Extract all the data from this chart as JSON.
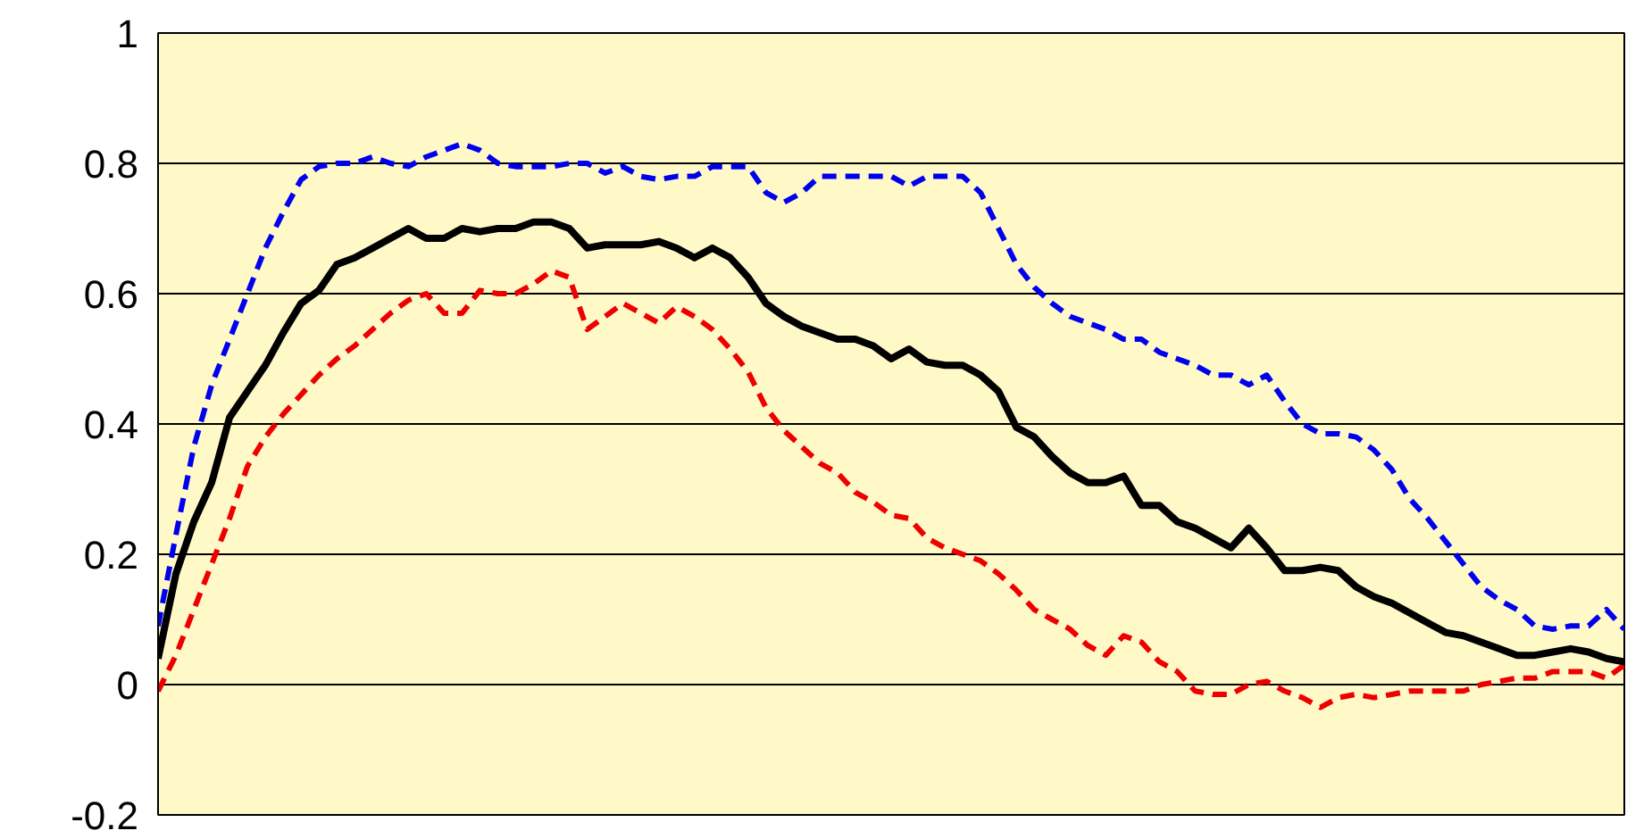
{
  "chart_data": {
    "type": "line",
    "categories": [
      null,
      null,
      null,
      null,
      null,
      null,
      null,
      null,
      null,
      null,
      null,
      null,
      null,
      null,
      null,
      null,
      null,
      null,
      null,
      null,
      null,
      null,
      null,
      null,
      null,
      null,
      null,
      null,
      null,
      null,
      null,
      null,
      null,
      null,
      null,
      null,
      null,
      null,
      null,
      null,
      null,
      null,
      null,
      null,
      null,
      null,
      null,
      null,
      null,
      null,
      null,
      null,
      null,
      null,
      null,
      null,
      null,
      null,
      null,
      null,
      null,
      null,
      null,
      null,
      null,
      null,
      null,
      null,
      null,
      null,
      null,
      null,
      null,
      null,
      null,
      null,
      null,
      null,
      null,
      null,
      null,
      null,
      null
    ],
    "series": [
      {
        "color": "#0000ee",
        "line_style": "dashed",
        "values": [
          0.09,
          0.23,
          0.365,
          0.46,
          0.53,
          0.6,
          0.67,
          0.725,
          0.775,
          0.795,
          0.8,
          0.8,
          0.81,
          0.8,
          0.795,
          0.81,
          0.82,
          0.83,
          0.82,
          0.8,
          0.795,
          0.795,
          0.795,
          0.8,
          0.8,
          0.785,
          0.795,
          0.78,
          0.775,
          0.78,
          0.78,
          0.795,
          0.795,
          0.795,
          0.755,
          0.74,
          0.755,
          0.78,
          0.78,
          0.78,
          0.78,
          0.78,
          0.765,
          0.78,
          0.78,
          0.78,
          0.755,
          0.7,
          0.645,
          0.61,
          0.585,
          0.565,
          0.555,
          0.545,
          0.53,
          0.53,
          0.51,
          0.5,
          0.49,
          0.475,
          0.475,
          0.46,
          0.475,
          0.435,
          0.4,
          0.385,
          0.385,
          0.38,
          0.36,
          0.33,
          0.285,
          0.255,
          0.22,
          0.185,
          0.15,
          0.13,
          0.115,
          0.09,
          0.085,
          0.09,
          0.09,
          0.115,
          0.085
        ]
      },
      {
        "color": "#ee0000",
        "line_style": "dashed",
        "values": [
          -0.01,
          0.045,
          0.115,
          0.185,
          0.255,
          0.335,
          0.38,
          0.415,
          0.445,
          0.475,
          0.5,
          0.52,
          0.545,
          0.57,
          0.59,
          0.6,
          0.57,
          0.57,
          0.605,
          0.6,
          0.6,
          0.615,
          0.635,
          0.625,
          0.545,
          0.565,
          0.585,
          0.57,
          0.555,
          0.58,
          0.565,
          0.545,
          0.515,
          0.48,
          0.425,
          0.39,
          0.365,
          0.34,
          0.325,
          0.295,
          0.28,
          0.26,
          0.255,
          0.225,
          0.21,
          0.2,
          0.19,
          0.17,
          0.145,
          0.115,
          0.1,
          0.085,
          0.06,
          0.045,
          0.075,
          0.065,
          0.035,
          0.02,
          -0.01,
          -0.015,
          -0.015,
          0,
          0.005,
          -0.01,
          -0.02,
          -0.035,
          -0.02,
          -0.015,
          -0.02,
          -0.015,
          -0.01,
          -0.01,
          -0.01,
          -0.01,
          0,
          0.005,
          0.01,
          0.01,
          0.02,
          0.02,
          0.02,
          0.01,
          0.03
        ]
      },
      {
        "color": "#000000",
        "line_style": "solid",
        "values": [
          0.04,
          0.17,
          0.25,
          0.31,
          0.41,
          0.45,
          0.49,
          0.54,
          0.585,
          0.605,
          0.645,
          0.655,
          0.67,
          0.685,
          0.7,
          0.685,
          0.685,
          0.7,
          0.695,
          0.7,
          0.7,
          0.71,
          0.71,
          0.7,
          0.67,
          0.675,
          0.675,
          0.675,
          0.68,
          0.67,
          0.655,
          0.67,
          0.655,
          0.625,
          0.585,
          0.565,
          0.55,
          0.54,
          0.53,
          0.53,
          0.52,
          0.5,
          0.515,
          0.495,
          0.49,
          0.49,
          0.475,
          0.45,
          0.395,
          0.38,
          0.35,
          0.325,
          0.31,
          0.31,
          0.32,
          0.275,
          0.275,
          0.25,
          0.24,
          0.225,
          0.21,
          0.24,
          0.21,
          0.175,
          0.175,
          0.18,
          0.175,
          0.15,
          0.135,
          0.125,
          0.11,
          0.095,
          0.08,
          0.075,
          0.065,
          0.055,
          0.045,
          0.045,
          0.05,
          0.055,
          0.05,
          0.04,
          0.035
        ]
      }
    ],
    "ylim": [
      -0.2,
      1
    ],
    "yticks": [
      -0.2,
      0,
      0.2,
      0.4,
      0.6,
      0.8,
      1
    ],
    "grid": "y",
    "tick_labels": "y"
  }
}
